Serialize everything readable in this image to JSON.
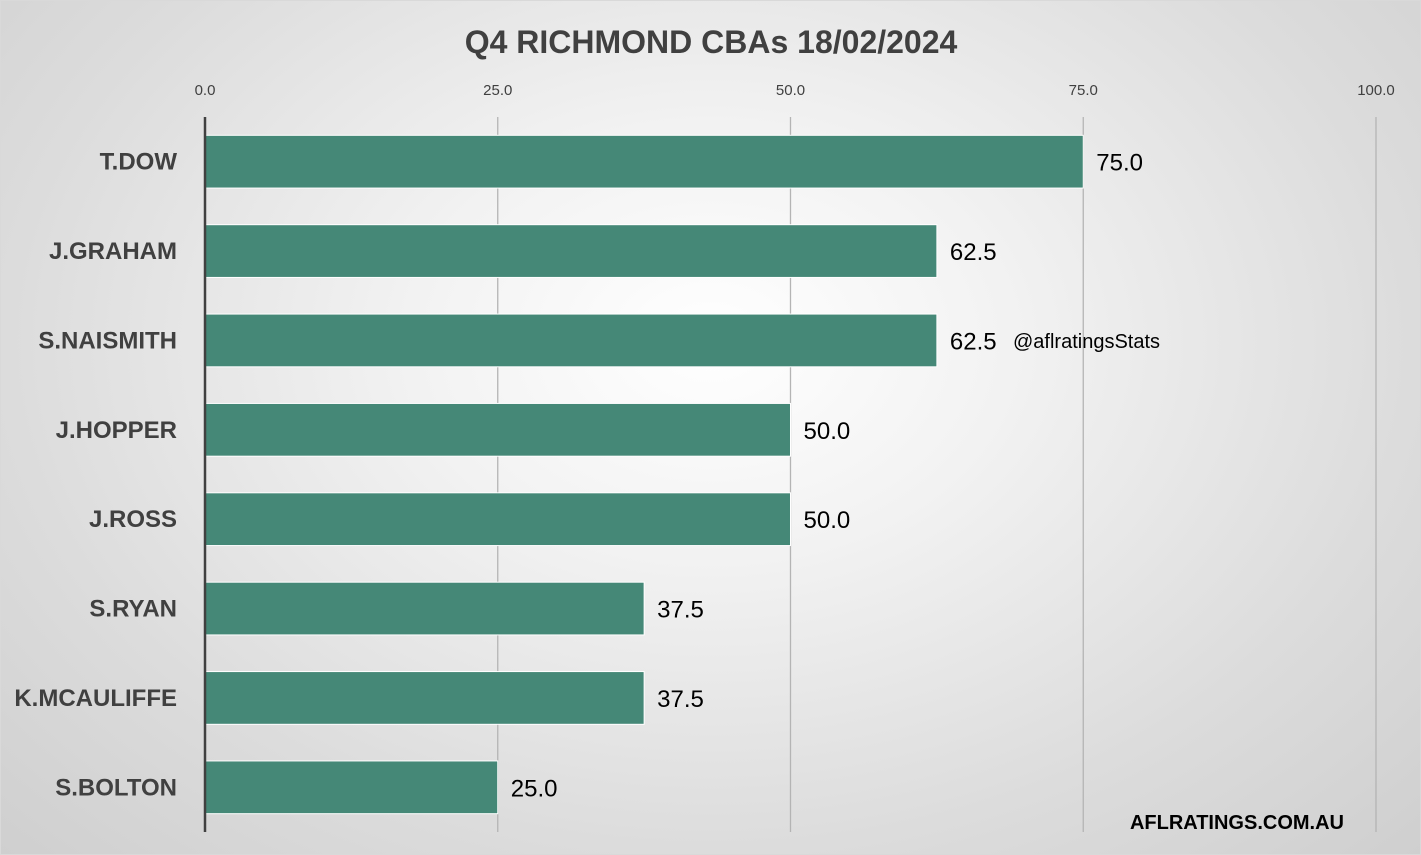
{
  "chart_data": {
    "type": "bar",
    "orientation": "horizontal",
    "title": "Q4 RICHMOND CBAs 18/02/2024",
    "categories": [
      "T.DOW",
      "J.GRAHAM",
      "S.NAISMITH",
      "J.HOPPER",
      "J.ROSS",
      "S.RYAN",
      "K.MCAULIFFE",
      "S.BOLTON"
    ],
    "values": [
      75.0,
      62.5,
      62.5,
      50.0,
      50.0,
      37.5,
      37.5,
      25.0
    ],
    "data_labels": [
      "75.0",
      "62.5",
      "62.5",
      "50.0",
      "50.0",
      "37.5",
      "37.5",
      "25.0"
    ],
    "xlim": [
      0,
      100
    ],
    "x_ticks": [
      0,
      25,
      50,
      75,
      100
    ],
    "x_tick_labels": [
      "0.0",
      "25.0",
      "50.0",
      "75.0",
      "100.0"
    ],
    "x_axis_position": "top",
    "grid": true,
    "legend": "none",
    "bar_color": "#458877",
    "gridline_color": "#b4b4b4",
    "axis_color": "#404040",
    "annotations": [
      "@aflratingsStats",
      "AFLRATINGS.COM.AU"
    ]
  },
  "watermark_text": "@aflratingsStats",
  "footer_text": "AFLRATINGS.COM.AU"
}
